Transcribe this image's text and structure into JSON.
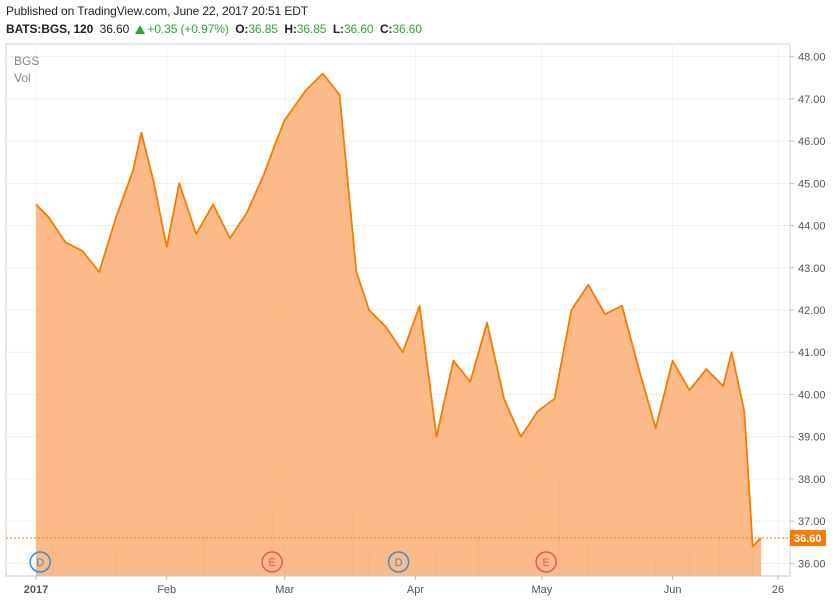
{
  "header": {
    "published": "Published on TradingView.com, June 22, 2017 20:51 EDT",
    "symbol_line": "BATS:BGS, 120",
    "last": "36.60",
    "change": "+0.35 (+0.97%)",
    "o_label": "O:",
    "o_value": "36.85",
    "h_label": "H:",
    "h_value": "36.85",
    "l_label": "L:",
    "l_value": "36.60",
    "c_label": "C:",
    "c_value": "36.60"
  },
  "legend": {
    "symbol": "BGS",
    "vol": "Vol"
  },
  "colors": {
    "line": "#f57c00",
    "area": "#fbb27a",
    "volume": "#d8c2a8",
    "badge_blue": "#3b8fd4",
    "badge_red": "#e05a5a",
    "positive": "#2eaa2e"
  },
  "chart_data": {
    "type": "area",
    "title": "BGS",
    "x_ticks": [
      "2017",
      "Feb",
      "Mar",
      "Apr",
      "May",
      "Jun",
      "26"
    ],
    "y_ticks": [
      "36.00",
      "37.00",
      "38.00",
      "39.00",
      "40.00",
      "41.00",
      "42.00",
      "43.00",
      "44.00",
      "45.00",
      "46.00",
      "47.00",
      "48.00"
    ],
    "ylim": [
      35.7,
      48.3
    ],
    "last_price_label": "36.60",
    "series": [
      {
        "x": [
          "2017-01-01",
          "2017-01-04",
          "2017-01-08",
          "2017-01-12",
          "2017-01-16",
          "2017-01-20",
          "2017-01-24",
          "2017-01-26",
          "2017-01-29",
          "2017-02-01",
          "2017-02-04",
          "2017-02-08",
          "2017-02-12",
          "2017-02-16",
          "2017-02-20",
          "2017-02-24",
          "2017-02-27",
          "2017-03-01",
          "2017-03-06",
          "2017-03-10",
          "2017-03-14",
          "2017-03-18",
          "2017-03-21",
          "2017-03-25",
          "2017-03-29",
          "2017-04-02",
          "2017-04-06",
          "2017-04-10",
          "2017-04-14",
          "2017-04-18",
          "2017-04-22",
          "2017-04-26",
          "2017-04-30",
          "2017-05-04",
          "2017-05-08",
          "2017-05-12",
          "2017-05-16",
          "2017-05-20",
          "2017-05-24",
          "2017-05-28",
          "2017-06-01",
          "2017-06-05",
          "2017-06-09",
          "2017-06-13",
          "2017-06-15",
          "2017-06-18",
          "2017-06-20",
          "2017-06-22"
        ],
        "values": [
          44.5,
          44.2,
          43.6,
          43.4,
          42.9,
          44.2,
          45.3,
          46.2,
          45.0,
          43.5,
          45.0,
          43.8,
          44.5,
          43.7,
          44.3,
          45.2,
          46.0,
          46.5,
          47.2,
          47.6,
          47.1,
          42.9,
          42.0,
          41.6,
          41.0,
          42.1,
          39.0,
          40.8,
          40.3,
          41.7,
          39.9,
          39.0,
          39.6,
          39.9,
          42.0,
          42.6,
          41.9,
          42.1,
          40.6,
          39.2,
          40.8,
          40.1,
          40.6,
          40.2,
          41.0,
          39.6,
          36.4,
          36.6
        ]
      },
      {
        "name": "Vol",
        "x": [
          "2017-01-05",
          "2017-01-20",
          "2017-02-10",
          "2017-02-26",
          "2017-03-01",
          "2017-03-17",
          "2017-03-21",
          "2017-04-06",
          "2017-04-16",
          "2017-05-02",
          "2017-05-05",
          "2017-05-12",
          "2017-05-28",
          "2017-06-05",
          "2017-06-12",
          "2017-06-20"
        ],
        "values": [
          0.5,
          0.4,
          0.6,
          1.0,
          0.5,
          1.0,
          0.3,
          0.3,
          0.6,
          0.4,
          1.4,
          0.5,
          0.3,
          0.4,
          0.6,
          0.5
        ]
      }
    ],
    "events": [
      {
        "label": "D",
        "date": "2017-01-02"
      },
      {
        "label": "E",
        "date": "2017-02-26"
      },
      {
        "label": "D",
        "date": "2017-03-28"
      },
      {
        "label": "E",
        "date": "2017-05-02"
      }
    ]
  }
}
